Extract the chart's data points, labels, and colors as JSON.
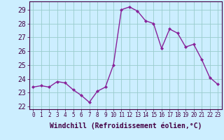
{
  "x": [
    0,
    1,
    2,
    3,
    4,
    5,
    6,
    7,
    8,
    9,
    10,
    11,
    12,
    13,
    14,
    15,
    16,
    17,
    18,
    19,
    20,
    21,
    22,
    23
  ],
  "y": [
    23.4,
    23.5,
    23.4,
    23.8,
    23.7,
    23.2,
    22.8,
    22.3,
    23.1,
    23.4,
    25.0,
    29.0,
    29.2,
    28.9,
    28.2,
    28.0,
    26.2,
    27.6,
    27.3,
    26.3,
    26.5,
    25.4,
    24.1,
    23.6
  ],
  "line_color": "#882299",
  "marker": "D",
  "marker_size": 2.0,
  "linewidth": 1.0,
  "xlabel": "Windchill (Refroidissement éolien,°C)",
  "xlabel_fontsize": 7,
  "ylabel_ticks": [
    22,
    23,
    24,
    25,
    26,
    27,
    28,
    29
  ],
  "xtick_labels": [
    "0",
    "1",
    "2",
    "3",
    "4",
    "5",
    "6",
    "7",
    "8",
    "9",
    "10",
    "11",
    "12",
    "13",
    "14",
    "15",
    "16",
    "17",
    "18",
    "19",
    "20",
    "21",
    "22",
    "23"
  ],
  "ytick_fontsize": 7,
  "xtick_fontsize": 5.5,
  "ylim": [
    21.8,
    29.6
  ],
  "xlim": [
    -0.5,
    23.5
  ],
  "bg_color": "#cceeff",
  "grid_color": "#99cccc",
  "axis_color": "#440044",
  "label_color": "#440044"
}
